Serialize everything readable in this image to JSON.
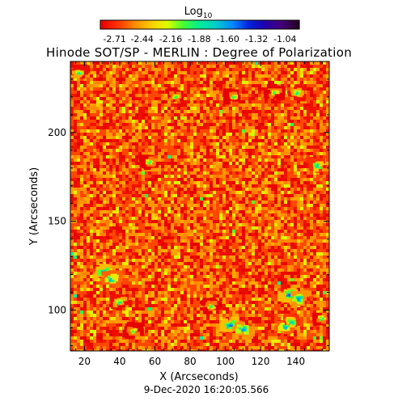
{
  "chart_data": {
    "type": "heatmap",
    "title": "Hinode SOT/SP - MERLIN : Degree of Polarization",
    "xlabel": "X (Arcseconds)",
    "ylabel": "Y (Arcseconds)",
    "xlim": [
      12,
      159
    ],
    "ylim": [
      77,
      240
    ],
    "x_ticks": [
      20,
      40,
      60,
      80,
      100,
      120,
      140
    ],
    "y_ticks": [
      100,
      150,
      200
    ],
    "colorbar": {
      "label_main": "Log",
      "label_sub": "10",
      "range": [
        -2.85,
        -0.9
      ],
      "ticks": [
        "-2.71",
        "-2.44",
        "-2.16",
        "-1.88",
        "-1.60",
        "-1.32",
        "-1.04"
      ],
      "colors": [
        "#e60000",
        "#ff3300",
        "#ff8800",
        "#ffcc00",
        "#ddff00",
        "#44ff33",
        "#00ee99",
        "#00cccc",
        "#0088ff",
        "#0022dd",
        "#2200aa",
        "#440077",
        "#220022"
      ]
    },
    "background_level": -2.65,
    "regions": [
      {
        "x": 31,
        "y": 121,
        "level": -1.5
      },
      {
        "x": 35,
        "y": 117,
        "level": -1.7
      },
      {
        "x": 40,
        "y": 104,
        "level": -1.9
      },
      {
        "x": 103,
        "y": 91,
        "level": -1.5
      },
      {
        "x": 110,
        "y": 89,
        "level": -1.6
      },
      {
        "x": 136,
        "y": 108,
        "level": -1.5
      },
      {
        "x": 142,
        "y": 106,
        "level": -1.6
      },
      {
        "x": 134,
        "y": 90,
        "level": -1.7
      },
      {
        "x": 138,
        "y": 93,
        "level": -1.8
      },
      {
        "x": 17,
        "y": 233,
        "level": -1.9
      },
      {
        "x": 72,
        "y": 220,
        "level": -2.0
      },
      {
        "x": 105,
        "y": 220,
        "level": -2.0
      },
      {
        "x": 128,
        "y": 222,
        "level": -2.0
      },
      {
        "x": 141,
        "y": 222,
        "level": -1.9
      },
      {
        "x": 57,
        "y": 183,
        "level": -2.0
      },
      {
        "x": 152,
        "y": 181,
        "level": -1.8
      },
      {
        "x": 48,
        "y": 88,
        "level": -2.0
      },
      {
        "x": 92,
        "y": 102,
        "level": -2.0
      },
      {
        "x": 155,
        "y": 95,
        "level": -2.0
      }
    ]
  },
  "footer": {
    "timestamp": "9-Dec-2020 16:20:05.566"
  }
}
